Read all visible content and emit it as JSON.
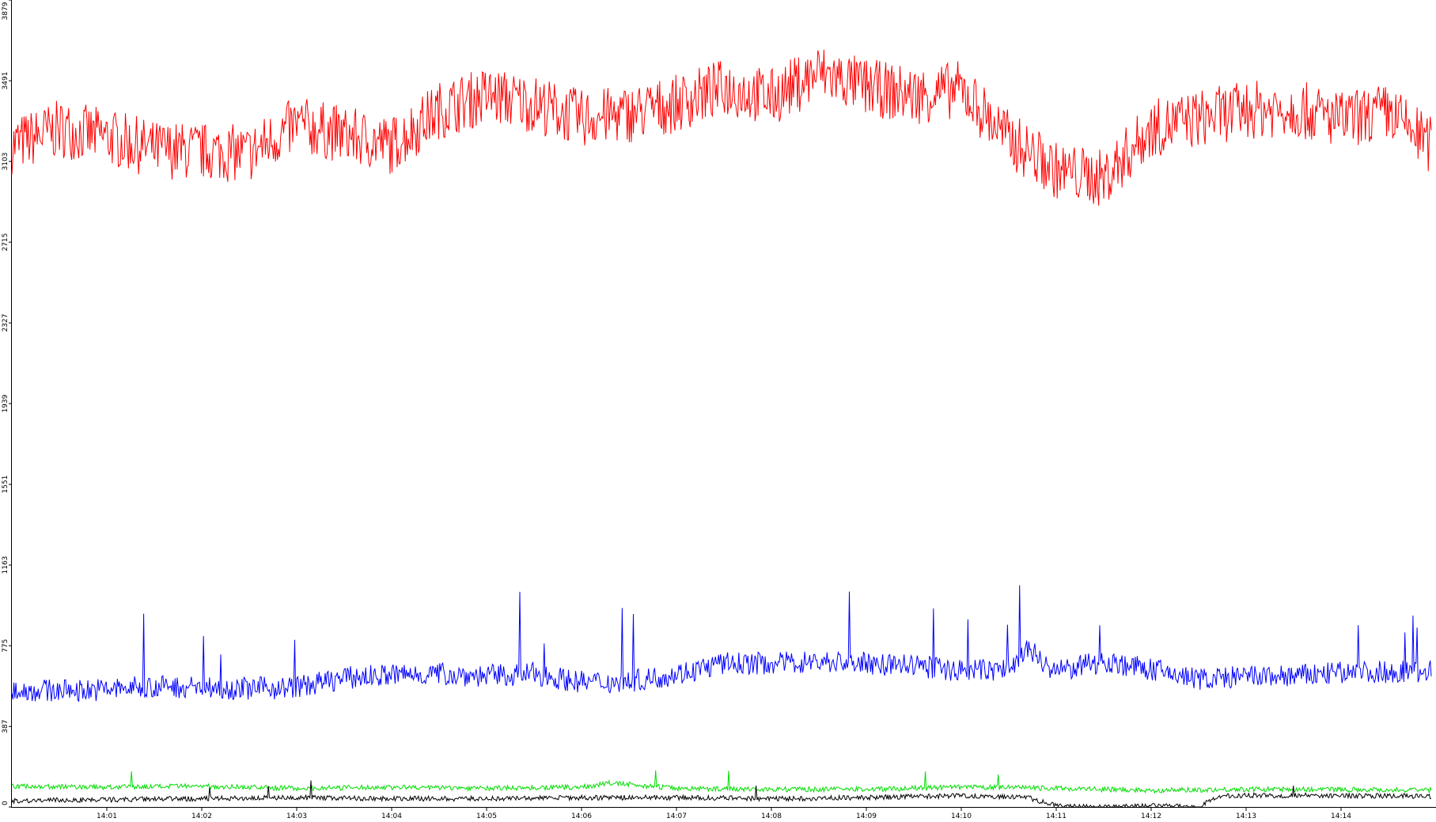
{
  "chart_data": {
    "type": "line",
    "title": "",
    "xlabel": "",
    "ylabel": "",
    "ylim": [
      0,
      3879
    ],
    "xlim": [
      "14:00",
      "14:15"
    ],
    "grid": false,
    "legend": "none",
    "y_ticks": [
      0,
      387,
      775,
      1163,
      1551,
      1939,
      2327,
      2715,
      3103,
      3491,
      3879
    ],
    "y_tick_labels": [
      "0",
      "387",
      "775",
      "1163",
      "1551",
      "1939",
      "2327",
      "2715",
      "3103",
      "3491",
      "3879"
    ],
    "x_ticks": [
      "14:01",
      "14:02",
      "14:03",
      "14:04",
      "14:05",
      "14:06",
      "14:07",
      "14:08",
      "14:09",
      "14:10",
      "14:11",
      "14:12",
      "14:13",
      "14:14"
    ],
    "x_tick_minutes": [
      1,
      2,
      3,
      4,
      5,
      6,
      7,
      8,
      9,
      10,
      11,
      12,
      13,
      14
    ],
    "series": [
      {
        "color": "#ff0000",
        "x_minutes": [
          0.0,
          0.5,
          1.0,
          1.5,
          2.0,
          2.5,
          3.0,
          3.5,
          4.0,
          4.5,
          5.0,
          5.5,
          6.0,
          6.5,
          7.0,
          7.5,
          8.0,
          8.5,
          9.0,
          9.5,
          10.0,
          10.5,
          11.0,
          11.5,
          12.0,
          12.5,
          13.0,
          13.5,
          14.0,
          14.5,
          14.95
        ],
        "values": [
          3180,
          3260,
          3220,
          3160,
          3150,
          3140,
          3280,
          3230,
          3180,
          3350,
          3420,
          3380,
          3310,
          3330,
          3380,
          3460,
          3410,
          3530,
          3460,
          3420,
          3450,
          3210,
          3060,
          3020,
          3260,
          3310,
          3350,
          3360,
          3300,
          3340,
          3180
        ]
      },
      {
        "color": "#0000ff",
        "x_minutes": [
          0.0,
          0.5,
          1.0,
          1.5,
          2.0,
          2.5,
          3.0,
          3.5,
          4.0,
          4.5,
          5.0,
          5.5,
          6.0,
          6.5,
          7.0,
          7.5,
          8.0,
          8.5,
          9.0,
          9.5,
          10.0,
          10.5,
          10.7,
          11.0,
          11.5,
          12.0,
          12.5,
          13.0,
          13.5,
          14.0,
          14.5,
          14.95
        ],
        "values": [
          560,
          560,
          565,
          580,
          575,
          570,
          575,
          620,
          635,
          640,
          630,
          640,
          600,
          600,
          640,
          690,
          690,
          700,
          690,
          680,
          655,
          660,
          760,
          650,
          700,
          660,
          615,
          625,
          630,
          645,
          650,
          655
        ]
      },
      {
        "color": "#00dd00",
        "x_minutes": [
          0.0,
          1.0,
          2.0,
          3.0,
          4.0,
          5.0,
          6.0,
          6.3,
          7.0,
          8.0,
          9.0,
          10.0,
          11.0,
          12.0,
          13.0,
          14.0,
          14.95
        ],
        "values": [
          100,
          95,
          100,
          90,
          95,
          90,
          95,
          115,
          90,
          85,
          85,
          95,
          90,
          80,
          85,
          85,
          80
        ]
      },
      {
        "color": "#000000",
        "x_minutes": [
          0.0,
          1.0,
          2.0,
          3.0,
          4.0,
          5.0,
          6.0,
          7.0,
          8.0,
          9.0,
          10.0,
          10.7,
          11.0,
          11.5,
          12.0,
          12.5,
          12.7,
          13.0,
          14.0,
          14.95
        ],
        "values": [
          30,
          35,
          40,
          45,
          40,
          40,
          45,
          45,
          40,
          45,
          55,
          45,
          5,
          0,
          5,
          0,
          50,
          55,
          55,
          50
        ]
      }
    ]
  }
}
